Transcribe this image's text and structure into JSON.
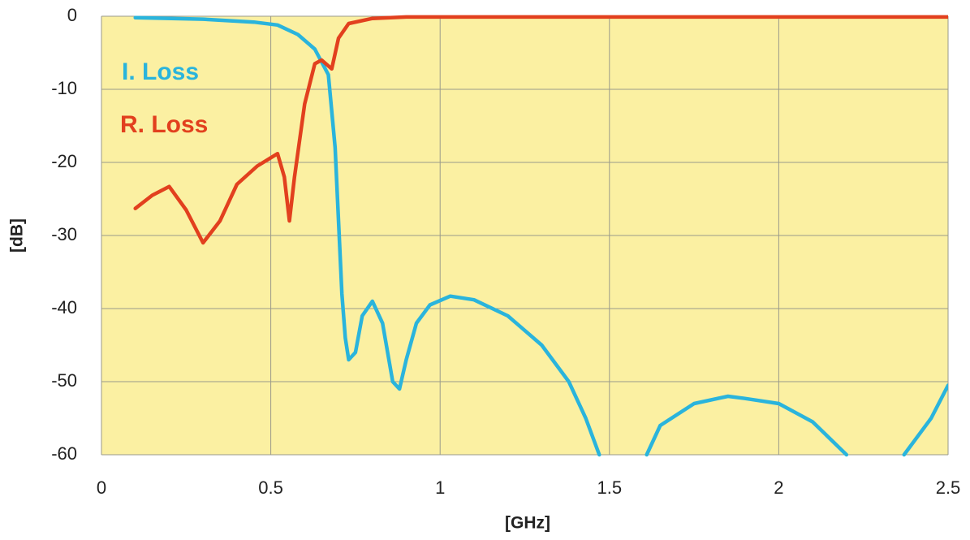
{
  "chart_data": {
    "type": "line",
    "x_label": "[GHz]",
    "y_label": "[dB]",
    "xlim": [
      0,
      2.5
    ],
    "xticks": [
      0,
      0.5,
      1,
      1.5,
      2,
      2.5
    ],
    "ylim": [
      -60,
      0
    ],
    "yticks": [
      -60,
      -50,
      -40,
      -30,
      -20,
      -10,
      0
    ],
    "grid": true,
    "background": "#fbf0a2",
    "series": [
      {
        "name": "I. Loss",
        "color": "#2ab4dc",
        "x": [
          0.1,
          0.3,
          0.45,
          0.52,
          0.58,
          0.63,
          0.67,
          0.69,
          0.7,
          0.71,
          0.72,
          0.73,
          0.75,
          0.77,
          0.8,
          0.83,
          0.86,
          0.88,
          0.9,
          0.93,
          0.97,
          1.03,
          1.1,
          1.2,
          1.3,
          1.38,
          1.43,
          1.47,
          1.54,
          1.61,
          1.65,
          1.75,
          1.85,
          1.9,
          2.0,
          2.1,
          2.2,
          2.28,
          2.37,
          2.45,
          2.5
        ],
        "values": [
          -0.2,
          -0.4,
          -0.8,
          -1.2,
          -2.5,
          -4.5,
          -8,
          -18,
          -28,
          -38,
          -44,
          -47,
          -46,
          -41,
          -39,
          -42,
          -50,
          -51,
          -47,
          -42,
          -39.5,
          -38.3,
          -38.8,
          -41,
          -45,
          -50,
          -55,
          -60,
          null,
          -60,
          -56,
          -53,
          -52,
          -52.3,
          -53,
          -55.5,
          -60,
          null,
          -60,
          -55,
          -50.5
        ]
      },
      {
        "name": "R. Loss",
        "color": "#e2401e",
        "x": [
          0.1,
          0.15,
          0.2,
          0.25,
          0.3,
          0.35,
          0.4,
          0.46,
          0.52,
          0.54,
          0.555,
          0.57,
          0.6,
          0.63,
          0.65,
          0.67,
          0.68,
          0.7,
          0.73,
          0.8,
          0.9,
          1.0,
          2.5
        ],
        "values": [
          -26.3,
          -24.5,
          -23.3,
          -26.5,
          -31,
          -28,
          -23,
          -20.5,
          -18.8,
          -22,
          -28,
          -22,
          -12,
          -6.5,
          -6,
          -6.8,
          -7.2,
          -3,
          -1,
          -0.3,
          -0.1,
          -0.1,
          -0.1
        ]
      }
    ]
  }
}
